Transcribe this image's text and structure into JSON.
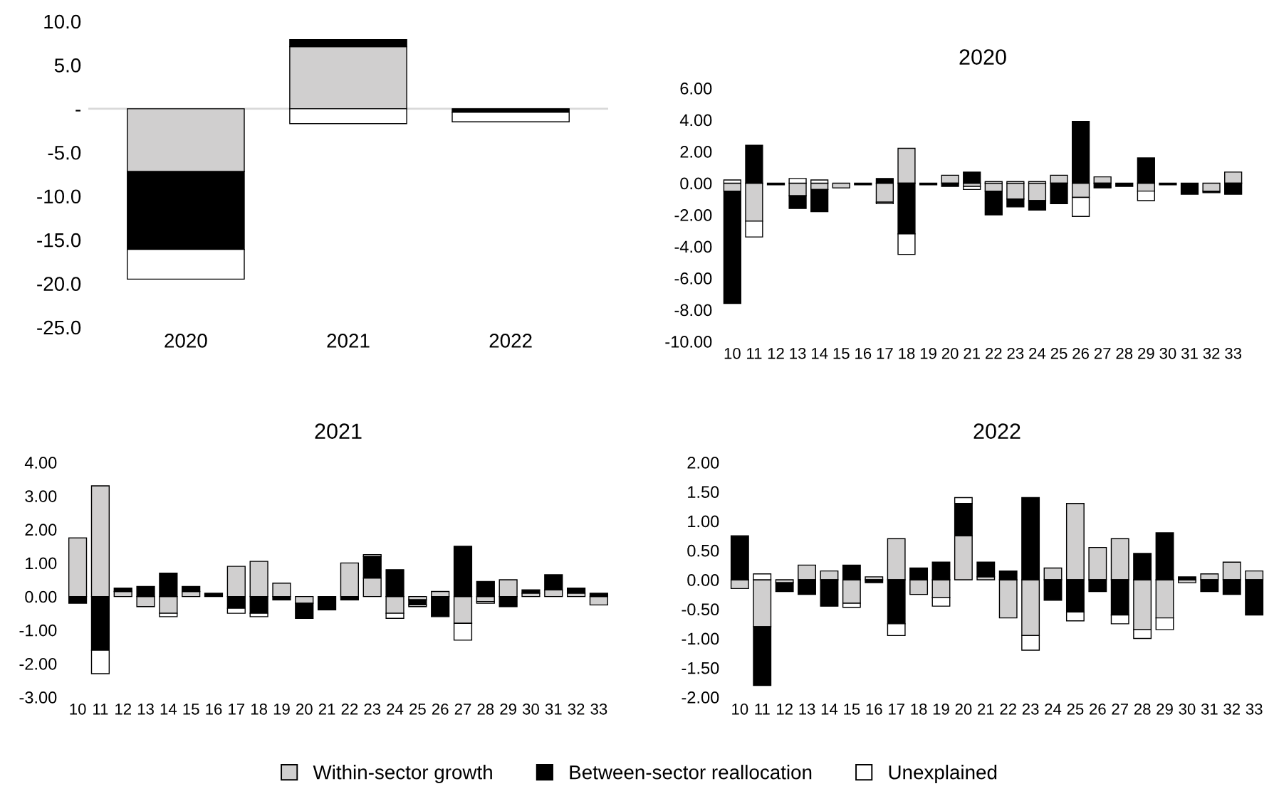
{
  "chart_data": [
    {
      "type": "bar",
      "stacked": true,
      "categories": [
        "2020",
        "2021",
        "2022"
      ],
      "series": [
        {
          "name": "Within-sector growth",
          "color": "#d0cfcf",
          "values": [
            -7.2,
            7.1,
            null
          ]
        },
        {
          "name": "Between-sector reallocation",
          "color": "#000000",
          "values": [
            -8.9,
            0.8,
            -0.4
          ]
        },
        {
          "name": "Unexplained",
          "color": "#ffffff",
          "values": [
            -3.4,
            -1.7,
            -1.1
          ]
        }
      ],
      "ylim": [
        -25,
        10
      ],
      "yticks": [
        {
          "value": -25,
          "label": "-25.0"
        },
        {
          "value": -20,
          "label": "-20.0"
        },
        {
          "value": -15,
          "label": "-15.0"
        },
        {
          "value": -10,
          "label": "-10.0"
        },
        {
          "value": -5,
          "label": "-5.0"
        },
        {
          "value": 0,
          "label": "-"
        },
        {
          "value": 5,
          "label": "5.0"
        },
        {
          "value": 10,
          "label": "10.0"
        }
      ],
      "ref_lines": [
        {
          "axis": "y",
          "value": 0,
          "color": "#d9d9d9"
        }
      ],
      "legend": "bottom",
      "grid": false
    },
    {
      "type": "bar",
      "stacked": true,
      "title": "2020",
      "categories": [
        "10",
        "11",
        "12",
        "13",
        "14",
        "15",
        "16",
        "17",
        "18",
        "19",
        "20",
        "21",
        "22",
        "23",
        "24",
        "25",
        "26",
        "27",
        "28",
        "29",
        "30",
        "31",
        "32",
        "33"
      ],
      "series": [
        {
          "color": "#d0cfcf",
          "values": [
            -0.5,
            -2.4,
            null,
            -0.8,
            -0.4,
            -0.3,
            null,
            -1.2,
            2.2,
            null,
            0.5,
            -0.2,
            -0.5,
            -1.0,
            -1.1,
            0.5,
            -0.9,
            0.4,
            null,
            -0.5,
            null,
            null,
            -0.5,
            0.7
          ]
        },
        {
          "color": "#000000",
          "values": [
            -7.1,
            2.4,
            -0.1,
            -0.8,
            -1.4,
            null,
            -0.1,
            0.3,
            -3.2,
            -0.1,
            -0.2,
            0.7,
            -1.5,
            -0.5,
            -0.6,
            -1.3,
            3.9,
            -0.3,
            -0.2,
            1.6,
            -0.1,
            -0.7,
            -0.1,
            -0.7
          ]
        },
        {
          "color": "#ffffff",
          "values": [
            0.2,
            -1.0,
            null,
            0.3,
            0.2,
            null,
            null,
            -0.1,
            -1.3,
            null,
            null,
            -0.2,
            0.1,
            0.1,
            0.1,
            null,
            -1.2,
            null,
            null,
            -0.6,
            null,
            null,
            null,
            null
          ]
        }
      ],
      "ylim": [
        -10,
        6
      ],
      "yticks": [
        {
          "value": -10,
          "label": "-10.00"
        },
        {
          "value": -8,
          "label": "-8.00"
        },
        {
          "value": -6,
          "label": "-6.00"
        },
        {
          "value": -4,
          "label": "-4.00"
        },
        {
          "value": -2,
          "label": "-2.00"
        },
        {
          "value": 0,
          "label": "0.00"
        },
        {
          "value": 2,
          "label": "2.00"
        },
        {
          "value": 4,
          "label": "4.00"
        },
        {
          "value": 6,
          "label": "6.00"
        }
      ],
      "grid": false
    },
    {
      "type": "bar",
      "stacked": true,
      "title": "2021",
      "categories": [
        "10",
        "11",
        "12",
        "13",
        "14",
        "15",
        "16",
        "17",
        "18",
        "19",
        "20",
        "21",
        "22",
        "23",
        "24",
        "25",
        "26",
        "27",
        "28",
        "29",
        "30",
        "31",
        "32",
        "33"
      ],
      "series": [
        {
          "color": "#d0cfcf",
          "values": [
            1.75,
            3.3,
            0.15,
            -0.3,
            -0.5,
            0.15,
            null,
            0.9,
            1.05,
            0.4,
            -0.2,
            null,
            1.0,
            0.55,
            -0.5,
            -0.1,
            0.15,
            -0.8,
            -0.15,
            0.5,
            0.1,
            0.2,
            0.1,
            -0.25
          ]
        },
        {
          "color": "#000000",
          "values": [
            -0.2,
            -1.6,
            0.1,
            0.3,
            0.7,
            0.15,
            0.1,
            -0.35,
            -0.5,
            -0.1,
            -0.45,
            -0.4,
            -0.1,
            0.65,
            0.8,
            -0.15,
            -0.6,
            1.5,
            0.45,
            -0.3,
            0.1,
            0.45,
            0.15,
            0.1
          ]
        },
        {
          "color": "#ffffff",
          "values": [
            null,
            -0.7,
            null,
            null,
            -0.1,
            null,
            null,
            -0.15,
            -0.1,
            null,
            null,
            null,
            null,
            0.05,
            -0.15,
            -0.05,
            null,
            -0.5,
            -0.05,
            null,
            null,
            null,
            null,
            null
          ]
        }
      ],
      "ylim": [
        -3,
        4
      ],
      "yticks": [
        {
          "value": -3,
          "label": "-3.00"
        },
        {
          "value": -2,
          "label": "-2.00"
        },
        {
          "value": -1,
          "label": "-1.00"
        },
        {
          "value": 0,
          "label": "0.00"
        },
        {
          "value": 1,
          "label": "1.00"
        },
        {
          "value": 2,
          "label": "2.00"
        },
        {
          "value": 3,
          "label": "3.00"
        },
        {
          "value": 4,
          "label": "4.00"
        }
      ],
      "grid": false
    },
    {
      "type": "bar",
      "stacked": true,
      "title": "2022",
      "categories": [
        "10",
        "11",
        "12",
        "13",
        "14",
        "15",
        "16",
        "17",
        "18",
        "19",
        "20",
        "21",
        "22",
        "23",
        "24",
        "25",
        "26",
        "27",
        "28",
        "29",
        "30",
        "31",
        "32",
        "33"
      ],
      "series": [
        {
          "color": "#d0cfcf",
          "values": [
            -0.15,
            -0.8,
            -0.05,
            0.25,
            0.15,
            -0.4,
            0.05,
            0.7,
            -0.25,
            -0.3,
            0.75,
            0.05,
            -0.65,
            -0.95,
            0.2,
            1.3,
            0.55,
            0.7,
            -0.85,
            -0.65,
            -0.05,
            0.1,
            0.3,
            0.15
          ]
        },
        {
          "color": "#000000",
          "values": [
            0.75,
            -1.0,
            -0.15,
            -0.25,
            -0.45,
            0.25,
            -0.05,
            -0.75,
            0.2,
            0.3,
            0.55,
            0.25,
            0.15,
            1.4,
            -0.35,
            -0.55,
            -0.2,
            -0.6,
            0.45,
            0.8,
            0.05,
            -0.2,
            -0.25,
            -0.6
          ]
        },
        {
          "color": "#ffffff",
          "values": [
            null,
            0.1,
            null,
            null,
            null,
            -0.07,
            null,
            -0.2,
            null,
            -0.15,
            0.1,
            null,
            null,
            -0.25,
            null,
            -0.15,
            null,
            -0.15,
            -0.15,
            -0.2,
            null,
            null,
            null,
            null
          ]
        }
      ],
      "ylim": [
        -2,
        2
      ],
      "yticks": [
        {
          "value": -2,
          "label": "-2.00"
        },
        {
          "value": -1.5,
          "label": "-1.50"
        },
        {
          "value": -1,
          "label": "-1.00"
        },
        {
          "value": -0.5,
          "label": "-0.50"
        },
        {
          "value": 0,
          "label": "0.00"
        },
        {
          "value": 0.5,
          "label": "0.50"
        },
        {
          "value": 1,
          "label": "1.00"
        },
        {
          "value": 1.5,
          "label": "1.50"
        },
        {
          "value": 2,
          "label": "2.00"
        }
      ],
      "grid": false
    }
  ]
}
